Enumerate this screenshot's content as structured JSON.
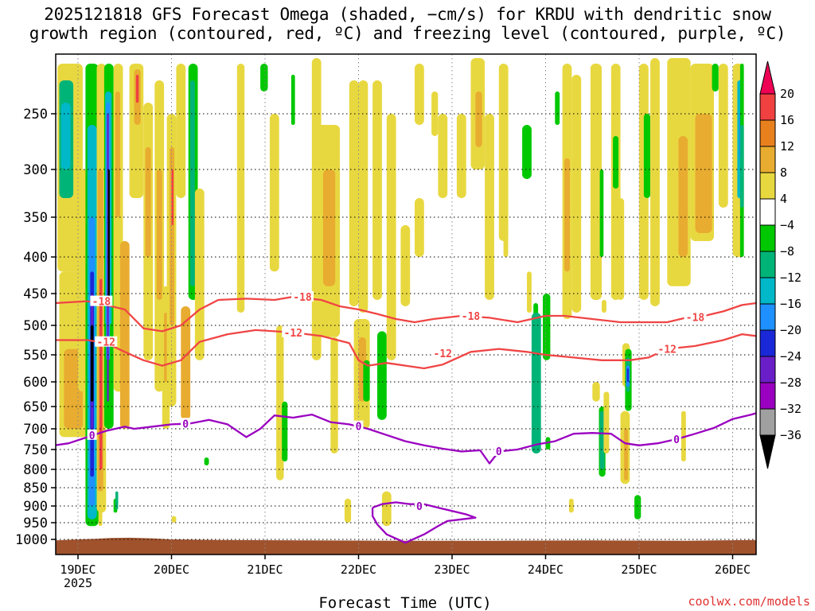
{
  "chart_data": {
    "type": "heatmap",
    "title": [
      "2025121818 GFS Forecast Omega (shaded, −cm/s) for KRDU with dendritic snow",
      "growth region (contoured, red, ºC) and freezing level (contoured, purple, ºC)"
    ],
    "xlabel": "Forecast Time (UTC)",
    "ylabel": "",
    "x_ticks": [
      "19DEC",
      "20DEC",
      "21DEC",
      "22DEC",
      "23DEC",
      "24DEC",
      "25DEC",
      "26DEC"
    ],
    "x_year_label": "2025",
    "x_range_days": [
      -0.25,
      7.25
    ],
    "y_ticks": [
      250,
      300,
      350,
      400,
      450,
      500,
      550,
      600,
      650,
      700,
      750,
      800,
      850,
      900,
      950,
      1000
    ],
    "y_range_hpa": [
      200,
      1025
    ],
    "colorbar": {
      "labels": [
        "20",
        "16",
        "12",
        "8",
        "4",
        "−4",
        "−8",
        "−12",
        "−16",
        "−20",
        "−24",
        "−28",
        "−32",
        "−36"
      ],
      "colors": [
        "#ee0055",
        "#f04040",
        "#e8801e",
        "#e8ac30",
        "#e8d840",
        "#ffffff",
        "#00c800",
        "#00b478",
        "#00b8c8",
        "#1e90ff",
        "#1a28d8",
        "#6a1ec8",
        "#9a00c0",
        "#a0a0a0",
        "#000000"
      ]
    },
    "contours": [
      {
        "name": "dgz -18",
        "color": "#f04545",
        "label": "-18",
        "points": [
          [
            -0.25,
            465
          ],
          [
            0.1,
            462
          ],
          [
            0.3,
            468
          ],
          [
            0.5,
            475
          ],
          [
            0.7,
            505
          ],
          [
            0.9,
            510
          ],
          [
            1.1,
            500
          ],
          [
            1.3,
            475
          ],
          [
            1.5,
            460
          ],
          [
            1.8,
            458
          ],
          [
            2.1,
            460
          ],
          [
            2.3,
            455
          ],
          [
            2.6,
            460
          ],
          [
            2.8,
            470
          ],
          [
            3.0,
            475
          ],
          [
            3.2,
            482
          ],
          [
            3.4,
            490
          ],
          [
            3.6,
            495
          ],
          [
            3.8,
            490
          ],
          [
            4.1,
            485
          ],
          [
            4.4,
            488
          ],
          [
            4.7,
            495
          ],
          [
            5.0,
            485
          ],
          [
            5.2,
            485
          ],
          [
            5.5,
            490
          ],
          [
            5.8,
            495
          ],
          [
            6.1,
            495
          ],
          [
            6.3,
            495
          ],
          [
            6.5,
            488
          ],
          [
            6.7,
            485
          ],
          [
            6.9,
            478
          ],
          [
            7.1,
            468
          ],
          [
            7.25,
            465
          ]
        ],
        "labels_at": [
          [
            0.25,
            462
          ],
          [
            2.4,
            455
          ],
          [
            4.2,
            485
          ],
          [
            6.6,
            487
          ]
        ]
      },
      {
        "name": "dgz -12",
        "color": "#f04545",
        "label": "-12",
        "points": [
          [
            -0.25,
            525
          ],
          [
            0.1,
            525
          ],
          [
            0.3,
            530
          ],
          [
            0.5,
            545
          ],
          [
            0.7,
            560
          ],
          [
            0.9,
            570
          ],
          [
            1.1,
            560
          ],
          [
            1.3,
            528
          ],
          [
            1.6,
            515
          ],
          [
            1.9,
            508
          ],
          [
            2.1,
            510
          ],
          [
            2.3,
            512
          ],
          [
            2.6,
            518
          ],
          [
            2.9,
            530
          ],
          [
            3.0,
            560
          ],
          [
            3.1,
            570
          ],
          [
            3.3,
            565
          ],
          [
            3.5,
            570
          ],
          [
            3.7,
            575
          ],
          [
            3.9,
            568
          ],
          [
            4.2,
            545
          ],
          [
            4.5,
            540
          ],
          [
            4.8,
            545
          ],
          [
            5.0,
            550
          ],
          [
            5.3,
            555
          ],
          [
            5.6,
            560
          ],
          [
            5.9,
            560
          ],
          [
            6.1,
            555
          ],
          [
            6.3,
            540
          ],
          [
            6.6,
            535
          ],
          [
            6.9,
            525
          ],
          [
            7.1,
            515
          ],
          [
            7.25,
            518
          ]
        ],
        "labels_at": [
          [
            0.3,
            528
          ],
          [
            2.3,
            512
          ],
          [
            3.9,
            547
          ],
          [
            6.3,
            540
          ]
        ]
      },
      {
        "name": "freezing level 0",
        "color": "#9a00c0",
        "label": "0",
        "points": [
          [
            -0.25,
            740
          ],
          [
            -0.1,
            735
          ],
          [
            0.1,
            720
          ],
          [
            0.3,
            705
          ],
          [
            0.5,
            695
          ],
          [
            0.6,
            700
          ],
          [
            0.8,
            695
          ],
          [
            1.0,
            690
          ],
          [
            1.2,
            688
          ],
          [
            1.4,
            680
          ],
          [
            1.6,
            690
          ],
          [
            1.8,
            720
          ],
          [
            1.95,
            700
          ],
          [
            2.1,
            670
          ],
          [
            2.3,
            675
          ],
          [
            2.5,
            668
          ],
          [
            2.7,
            685
          ],
          [
            2.9,
            690
          ],
          [
            3.1,
            700
          ],
          [
            3.3,
            715
          ],
          [
            3.5,
            730
          ],
          [
            3.7,
            740
          ],
          [
            3.9,
            748
          ],
          [
            4.1,
            755
          ],
          [
            4.3,
            752
          ],
          [
            4.4,
            785
          ],
          [
            4.5,
            755
          ],
          [
            4.7,
            750
          ],
          [
            4.9,
            738
          ],
          [
            5.1,
            730
          ],
          [
            5.3,
            712
          ],
          [
            5.5,
            710
          ],
          [
            5.7,
            712
          ],
          [
            5.85,
            735
          ],
          [
            6.0,
            740
          ],
          [
            6.2,
            735
          ],
          [
            6.4,
            725
          ],
          [
            6.6,
            712
          ],
          [
            6.8,
            698
          ],
          [
            7.0,
            678
          ],
          [
            7.2,
            668
          ],
          [
            7.25,
            665
          ]
        ],
        "labels_at": [
          [
            0.15,
            715
          ],
          [
            1.15,
            688
          ],
          [
            3.0,
            694
          ],
          [
            4.5,
            754
          ],
          [
            6.4,
            725
          ]
        ]
      },
      {
        "name": "freezing level 0 loop",
        "color": "#9a00c0",
        "label": "0",
        "points": [
          [
            3.15,
            905
          ],
          [
            3.25,
            895
          ],
          [
            3.4,
            890
          ],
          [
            3.55,
            895
          ],
          [
            3.7,
            895
          ],
          [
            3.85,
            905
          ],
          [
            4.0,
            915
          ],
          [
            4.15,
            925
          ],
          [
            4.25,
            935
          ],
          [
            4.1,
            940
          ],
          [
            3.95,
            945
          ],
          [
            3.85,
            960
          ],
          [
            3.7,
            985
          ],
          [
            3.5,
            1010
          ],
          [
            3.3,
            985
          ],
          [
            3.2,
            955
          ],
          [
            3.15,
            930
          ],
          [
            3.15,
            905
          ]
        ],
        "labels_at": [
          [
            3.65,
            900
          ]
        ]
      }
    ]
  },
  "footer": {
    "credit": "coolwx.com/models"
  }
}
